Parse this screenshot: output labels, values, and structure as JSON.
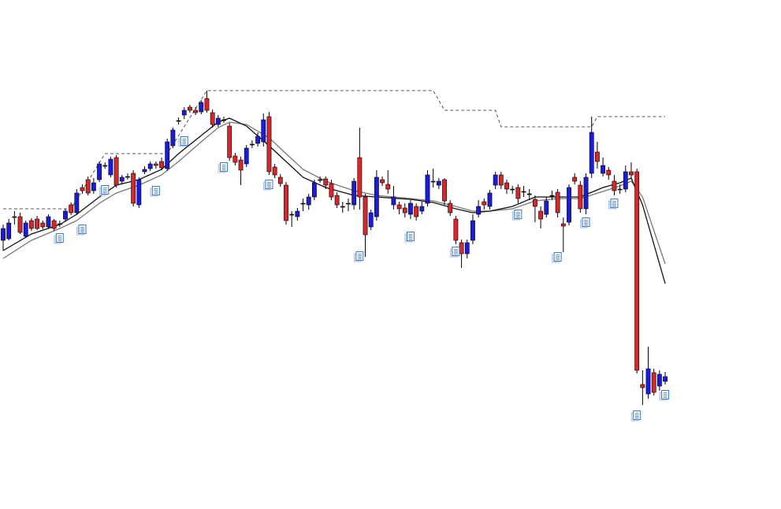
{
  "chart_data": {
    "type": "candlestick",
    "ylim": [
      0,
      646
    ],
    "up_color": "#1c1cd8",
    "down_color": "#d8262b",
    "open": [
      341,
      343,
      371,
      371,
      346,
      366,
      368,
      363,
      358,
      366,
      362,
      368,
      386,
      376,
      408,
      418,
      404,
      418,
      436,
      424,
      446,
      416,
      422,
      426,
      386,
      428,
      432,
      438,
      441,
      432,
      461,
      493,
      500,
      510,
      506,
      504,
      521,
      503,
      488,
      494,
      486,
      448,
      443,
      438,
      463,
      464,
      466,
      498,
      434,
      421,
      411,
      374,
      371,
      388,
      386,
      396,
      418,
      419,
      413,
      398,
      384,
      388,
      386,
      446,
      396,
      358,
      371,
      418,
      412,
      386,
      386,
      382,
      374,
      384,
      378,
      388,
      416,
      411,
      418,
      388,
      368,
      338,
      324,
      341,
      374,
      390,
      384,
      411,
      424,
      414,
      406,
      408,
      403,
      400,
      393,
      378,
      374,
      398,
      402,
      362,
      364,
      421,
      411,
      381,
      426,
      453,
      426,
      430,
      416,
      406,
      406,
      428,
      428,
      158,
      146,
      173,
      156,
      162
    ],
    "high": [
      361,
      368,
      378,
      376,
      366,
      369,
      372,
      366,
      374,
      368,
      366,
      381,
      389,
      406,
      412,
      422,
      420,
      441,
      440,
      447,
      449,
      424,
      426,
      430,
      421,
      435,
      441,
      441,
      446,
      470,
      484,
      497,
      510,
      513,
      510,
      519,
      531,
      507,
      500,
      498,
      490,
      452,
      447,
      462,
      468,
      478,
      502,
      504,
      438,
      425,
      415,
      378,
      382,
      394,
      400,
      418,
      422,
      422,
      418,
      402,
      390,
      394,
      420,
      484,
      400,
      380,
      430,
      422,
      430,
      410,
      390,
      388,
      392,
      388,
      390,
      430,
      432,
      420,
      420,
      392,
      372,
      342,
      342,
      374,
      392,
      394,
      405,
      428,
      428,
      418,
      410,
      412,
      410,
      406,
      398,
      384,
      396,
      404,
      406,
      370,
      412,
      426,
      416,
      426,
      498,
      466,
      446,
      434,
      424,
      412,
      436,
      440,
      432,
      176,
      206,
      178,
      176,
      174
    ],
    "low": [
      328,
      341,
      361,
      349,
      344,
      353,
      354,
      355,
      356,
      353,
      358,
      365,
      373,
      373,
      400,
      398,
      400,
      415,
      432,
      421,
      408,
      412,
      418,
      384,
      382,
      425,
      429,
      432,
      430,
      429,
      458,
      488,
      495,
      503,
      500,
      501,
      503,
      484,
      485,
      490,
      442,
      436,
      411,
      434,
      458,
      460,
      460,
      424,
      420,
      409,
      361,
      358,
      366,
      378,
      380,
      392,
      414,
      406,
      392,
      382,
      376,
      378,
      380,
      380,
      320,
      354,
      366,
      410,
      400,
      380,
      374,
      370,
      368,
      366,
      374,
      384,
      408,
      406,
      386,
      372,
      336,
      306,
      318,
      336,
      370,
      380,
      380,
      406,
      406,
      400,
      400,
      388,
      396,
      392,
      364,
      356,
      370,
      392,
      370,
      326,
      360,
      412,
      376,
      374,
      420,
      432,
      422,
      418,
      398,
      400,
      402,
      420,
      172,
      132,
      140,
      144,
      150,
      158
    ],
    "close": [
      356,
      363,
      371,
      351,
      363,
      356,
      356,
      358,
      371,
      356,
      362,
      378,
      376,
      401,
      404,
      401,
      414,
      438,
      436,
      444,
      411,
      421,
      422,
      388,
      418,
      431,
      438,
      436,
      433,
      466,
      481,
      493,
      506,
      506,
      503,
      516,
      506,
      488,
      496,
      494,
      446,
      440,
      430,
      458,
      463,
      473,
      494,
      428,
      424,
      413,
      366,
      374,
      378,
      388,
      396,
      414,
      418,
      411,
      396,
      386,
      384,
      388,
      416,
      396,
      348,
      376,
      421,
      414,
      406,
      396,
      381,
      376,
      388,
      371,
      384,
      424,
      416,
      416,
      391,
      376,
      341,
      324,
      338,
      366,
      384,
      386,
      401,
      424,
      411,
      406,
      406,
      394,
      403,
      400,
      384,
      368,
      391,
      398,
      376,
      359,
      408,
      416,
      381,
      421,
      478,
      441,
      436,
      424,
      404,
      406,
      428,
      424,
      176,
      154,
      178,
      148,
      171,
      168
    ],
    "series": [
      {
        "color": "#777777",
        "style": "solid",
        "x": [
          0,
          5,
          10,
          13,
          17,
          20,
          24,
          28,
          31,
          35,
          38,
          40,
          43,
          47,
          50,
          53,
          57,
          62,
          66,
          72,
          76,
          80,
          83,
          86,
          90,
          94,
          98,
          102,
          106,
          109,
          111,
          113,
          117
        ],
        "values": [
          318,
          341,
          356,
          366,
          388,
          401,
          411,
          424,
          441,
          466,
          484,
          491,
          488,
          471,
          451,
          431,
          416,
          404,
          398,
          394,
          391,
          384,
          378,
          378,
          381,
          391,
          394,
          394,
          403,
          410,
          416,
          396,
          311
        ]
      },
      {
        "color": "#111111",
        "style": "solid",
        "x": [
          0,
          5,
          10,
          13,
          17,
          20,
          24,
          28,
          31,
          35,
          38,
          40,
          43,
          47,
          50,
          53,
          57,
          62,
          66,
          72,
          76,
          80,
          83,
          86,
          90,
          94,
          98,
          102,
          106,
          109,
          111,
          113,
          117
        ],
        "values": [
          328,
          349,
          361,
          374,
          396,
          411,
          418,
          431,
          451,
          474,
          491,
          496,
          486,
          461,
          441,
          421,
          408,
          398,
          396,
          393,
          389,
          381,
          376,
          378,
          384,
          396,
          396,
          396,
          408,
          414,
          420,
          386,
          286
        ]
      },
      {
        "color": "#555555",
        "style": "dashed",
        "x": [
          0,
          12,
          18,
          29,
          36,
          76,
          78,
          87,
          88,
          104,
          105,
          117
        ],
        "values": [
          381,
          381,
          451,
          451,
          531,
          531,
          506,
          506,
          485,
          485,
          498,
          498
        ]
      }
    ],
    "events": {
      "color": "#3a78d0",
      "x": [
        10,
        14,
        18,
        27,
        32,
        39,
        47,
        63,
        72,
        80,
        91,
        98,
        103,
        108,
        112,
        117
      ],
      "values": [
        343,
        354,
        404,
        403,
        466,
        433,
        411,
        320,
        345,
        326,
        373,
        319,
        363,
        387,
        118,
        144
      ]
    }
  }
}
